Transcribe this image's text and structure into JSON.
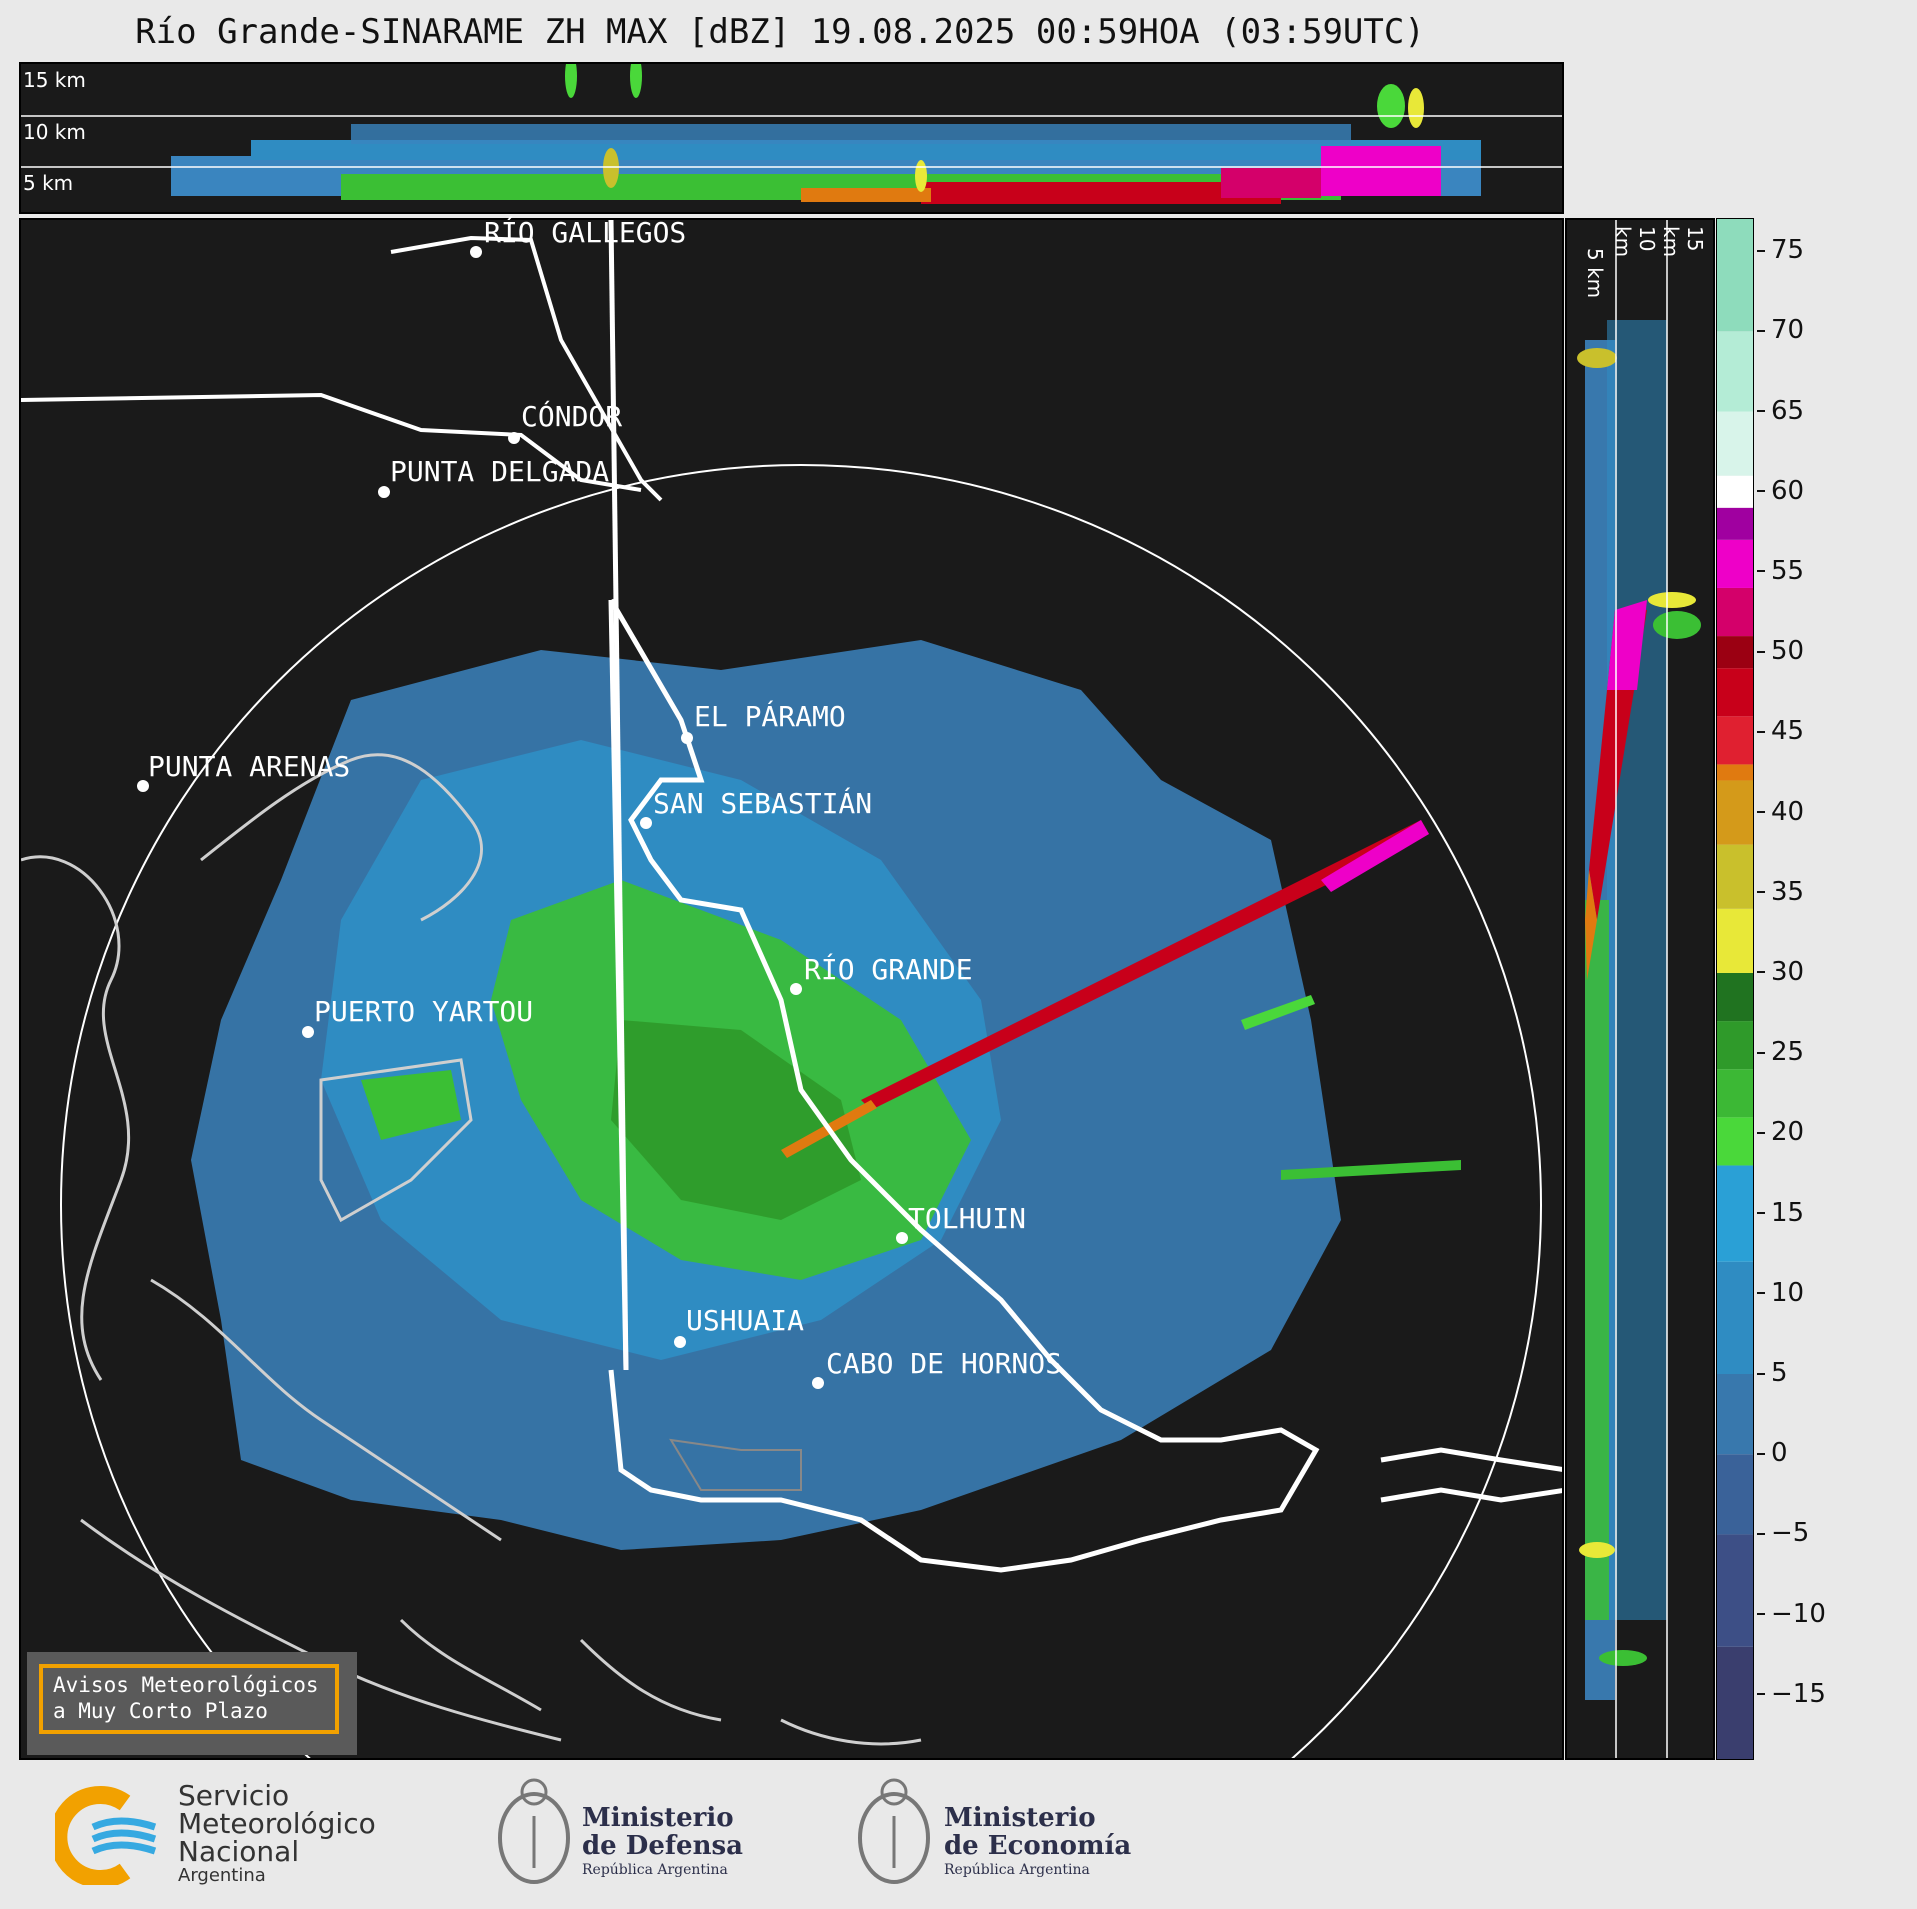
{
  "title": "Río Grande-SINARAME ZH MAX [dBZ] 19.08.2025 00:59HOA (03:59UTC)",
  "altitude_labels": [
    "15 km",
    "10 km",
    "5 km"
  ],
  "side_altitude_labels": [
    "5 km",
    "10 km",
    "15 km"
  ],
  "cities": [
    {
      "name": "RÍO GALLEGOS"
    },
    {
      "name": "CÓNDOR"
    },
    {
      "name": "PUNTA DELGADA"
    },
    {
      "name": "EL PÁRAMO"
    },
    {
      "name": "PUNTA ARENAS"
    },
    {
      "name": "SAN SEBASTIÁN"
    },
    {
      "name": "RÍO GRANDE"
    },
    {
      "name": "PUERTO YARTOU"
    },
    {
      "name": "TOLHUIN"
    },
    {
      "name": "USHUAIA"
    },
    {
      "name": "CABO DE HORNOS"
    }
  ],
  "colorbar": {
    "unit": "dBZ",
    "ticks": [
      "75",
      "70",
      "65",
      "60",
      "55",
      "50",
      "45",
      "40",
      "35",
      "30",
      "25",
      "20",
      "15",
      "10",
      "5",
      "0",
      "−5",
      "−10",
      "−15"
    ],
    "min": -19,
    "max": 77,
    "stops": [
      {
        "from": -19,
        "color": "#3a3e6e"
      },
      {
        "from": -12,
        "color": "#3d4f86"
      },
      {
        "from": -5,
        "color": "#3a6299"
      },
      {
        "from": 0,
        "color": "#3878ad"
      },
      {
        "from": 5,
        "color": "#2f8cc2"
      },
      {
        "from": 12,
        "color": "#2aa0d6"
      },
      {
        "from": 18,
        "color": "#4ad83a"
      },
      {
        "from": 21,
        "color": "#3cb835"
      },
      {
        "from": 24,
        "color": "#2f9a2a"
      },
      {
        "from": 27,
        "color": "#207320"
      },
      {
        "from": 30,
        "color": "#e8e838"
      },
      {
        "from": 34,
        "color": "#c9c02c"
      },
      {
        "from": 38,
        "color": "#d49a1a"
      },
      {
        "from": 42,
        "color": "#e07a10"
      },
      {
        "from": 43,
        "color": "#e02030"
      },
      {
        "from": 46,
        "color": "#c8001a"
      },
      {
        "from": 49,
        "color": "#9b0012"
      },
      {
        "from": 51,
        "color": "#d4006a"
      },
      {
        "from": 54,
        "color": "#ee00c8"
      },
      {
        "from": 57,
        "color": "#a000a0"
      },
      {
        "from": 59,
        "color": "#ffffff"
      },
      {
        "from": 61,
        "color": "#d8f4ea"
      },
      {
        "from": 65,
        "color": "#b4ecd6"
      },
      {
        "from": 70,
        "color": "#8edcbc"
      }
    ]
  },
  "alert": {
    "line1": "Avisos Meteorológicos",
    "line2": "a Muy Corto Plazo"
  },
  "logos": {
    "smn": {
      "line1": "Servicio",
      "line2": "Meteorológico",
      "line3": "Nacional",
      "line4": "Argentina"
    },
    "defensa": {
      "line1": "Ministerio",
      "line2": "de Defensa",
      "line3": "República Argentina"
    },
    "economia": {
      "line1": "Ministerio",
      "line2": "de Economía",
      "line3": "República Argentina"
    }
  }
}
